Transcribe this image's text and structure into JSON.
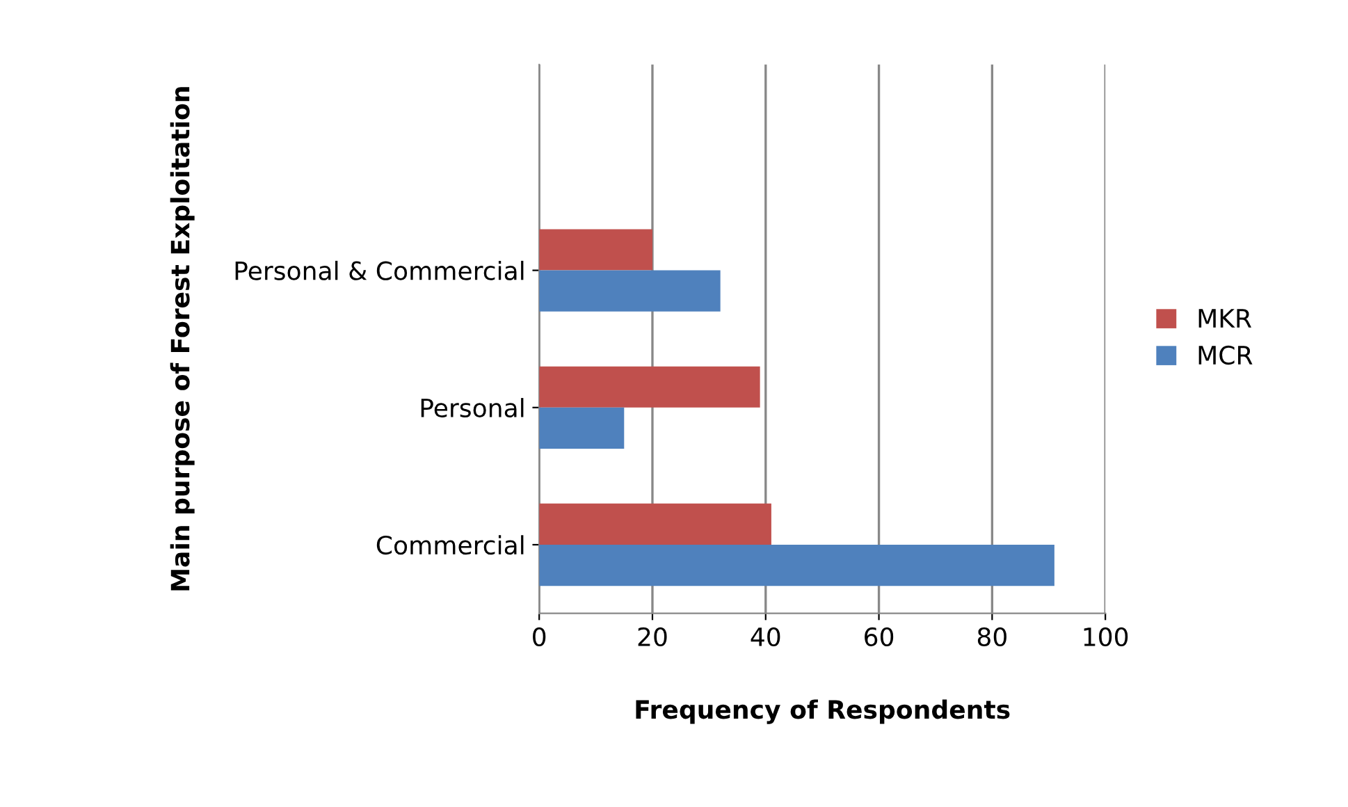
{
  "chart_data": {
    "type": "bar",
    "orientation": "horizontal",
    "categories": [
      "Personal & Commercial",
      "Personal",
      "Commercial"
    ],
    "series": [
      {
        "name": "MKR",
        "color": "#c0504d",
        "values": [
          20,
          39,
          41
        ]
      },
      {
        "name": "MCR",
        "color": "#4f81bd",
        "values": [
          32,
          15,
          91
        ]
      }
    ],
    "xlabel": "Frequency of Respondents",
    "ylabel": "Main purpose of Forest Exploitation",
    "xlim": [
      0,
      100
    ],
    "xticks": [
      0,
      20,
      40,
      60,
      80,
      100
    ],
    "grid": "x",
    "legend": "right"
  }
}
